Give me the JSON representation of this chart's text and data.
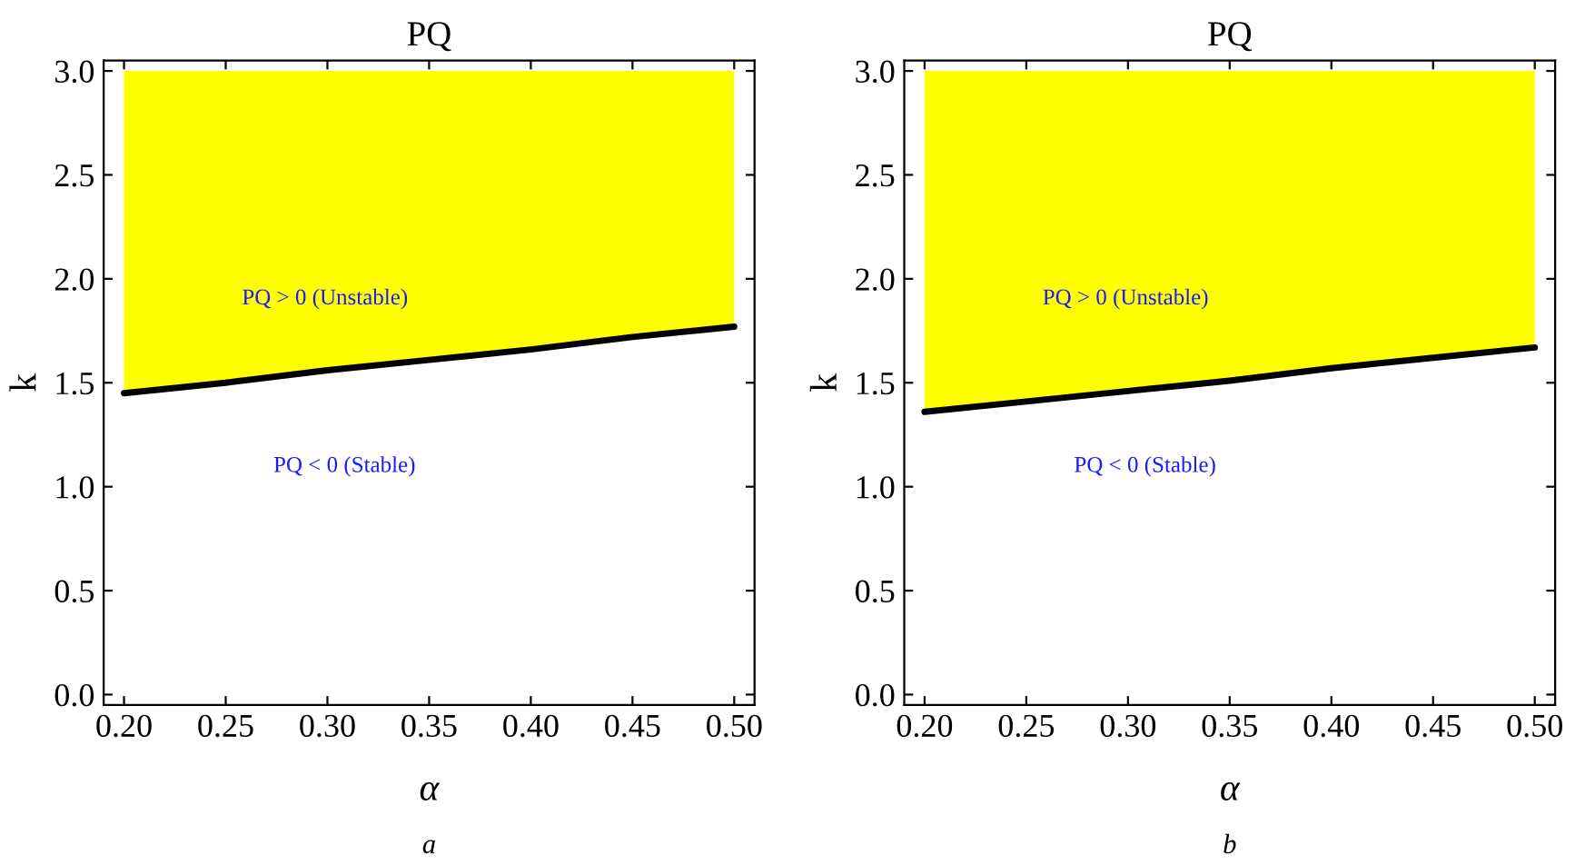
{
  "chart_data": [
    {
      "type": "area",
      "title": "PQ",
      "xlabel": "α",
      "ylabel": "k",
      "x": [
        0.2,
        0.25,
        0.3,
        0.35,
        0.4,
        0.45,
        0.5
      ],
      "xlim": [
        0.19,
        0.51
      ],
      "ylim": [
        -0.05,
        3.05
      ],
      "xticks": [
        {
          "value": 0.2,
          "label": "0.20"
        },
        {
          "value": 0.25,
          "label": "0.25"
        },
        {
          "value": 0.3,
          "label": "0.30"
        },
        {
          "value": 0.35,
          "label": "0.35"
        },
        {
          "value": 0.4,
          "label": "0.40"
        },
        {
          "value": 0.45,
          "label": "0.45"
        },
        {
          "value": 0.5,
          "label": "0.50"
        }
      ],
      "yticks": [
        {
          "value": 0,
          "label": "0.0"
        },
        {
          "value": 0.5,
          "label": "0.5"
        },
        {
          "value": 1,
          "label": "1.0"
        },
        {
          "value": 1.5,
          "label": "1.5"
        },
        {
          "value": 2,
          "label": "2.0"
        },
        {
          "value": 2.5,
          "label": "2.5"
        },
        {
          "value": 3,
          "label": "3.0"
        }
      ],
      "series": [
        {
          "color": "#ffffff",
          "values": [
            1.45,
            1.5,
            1.56,
            1.61,
            1.66,
            1.72,
            1.77
          ]
        },
        {
          "color": "#ffff00",
          "values": [
            1.55,
            1.5,
            1.44,
            1.39,
            1.34,
            1.28,
            1.23
          ]
        }
      ],
      "stacked": true,
      "annotations": [
        "PQ > 0 (Unstable)",
        "PQ < 0 (Stable)",
        "a"
      ]
    },
    {
      "type": "area",
      "title": "PQ",
      "xlabel": "α",
      "ylabel": "k",
      "x": [
        0.2,
        0.25,
        0.3,
        0.35,
        0.4,
        0.45,
        0.5
      ],
      "xlim": [
        0.19,
        0.51
      ],
      "ylim": [
        -0.05,
        3.05
      ],
      "xticks": [
        {
          "value": 0.2,
          "label": "0.20"
        },
        {
          "value": 0.25,
          "label": "0.25"
        },
        {
          "value": 0.3,
          "label": "0.30"
        },
        {
          "value": 0.35,
          "label": "0.35"
        },
        {
          "value": 0.4,
          "label": "0.40"
        },
        {
          "value": 0.45,
          "label": "0.45"
        },
        {
          "value": 0.5,
          "label": "0.50"
        }
      ],
      "yticks": [
        {
          "value": 0,
          "label": "0.0"
        },
        {
          "value": 0.5,
          "label": "0.5"
        },
        {
          "value": 1,
          "label": "1.0"
        },
        {
          "value": 1.5,
          "label": "1.5"
        },
        {
          "value": 2,
          "label": "2.0"
        },
        {
          "value": 2.5,
          "label": "2.5"
        },
        {
          "value": 3,
          "label": "3.0"
        }
      ],
      "series": [
        {
          "color": "#ffffff",
          "values": [
            1.36,
            1.41,
            1.46,
            1.51,
            1.57,
            1.62,
            1.67
          ]
        },
        {
          "color": "#ffff00",
          "values": [
            1.64,
            1.59,
            1.54,
            1.49,
            1.43,
            1.38,
            1.33
          ]
        }
      ],
      "stacked": true,
      "annotations": [
        "PQ > 0 (Unstable)",
        "PQ < 0 (Stable)",
        "b"
      ]
    }
  ]
}
